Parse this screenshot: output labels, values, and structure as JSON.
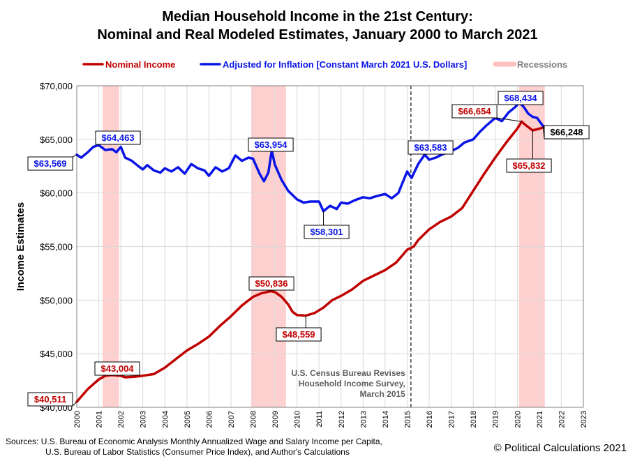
{
  "header": {
    "title_line1": "Median Household Income in the 21st Century:",
    "title_line2": "Nominal and Real Modeled Estimates, January 2000 to March 2021"
  },
  "legend": {
    "items": [
      {
        "label": "Nominal Income",
        "color": "#c00000"
      },
      {
        "label": "Adjusted for Inflation [Constant March 2021 U.S. Dollars]",
        "color": "#0a14e6"
      },
      {
        "label": "Recessions",
        "color": "#ffc0c0",
        "text_color": "#808080"
      }
    ]
  },
  "chart_data": {
    "type": "line",
    "ylabel": "Income Estimates",
    "xlim": [
      2000,
      2023
    ],
    "ylim": [
      40000,
      70000
    ],
    "x_ticks": [
      "2000",
      "2001",
      "2002",
      "2003",
      "2004",
      "2005",
      "2006",
      "2007",
      "2008",
      "2009",
      "2010",
      "2011",
      "2012",
      "2013",
      "2014",
      "2015",
      "2016",
      "2017",
      "2018",
      "2019",
      "2020",
      "2021",
      "2022",
      "2023"
    ],
    "y_ticks": [
      "$40,000",
      "$45,000",
      "$50,000",
      "$55,000",
      "$60,000",
      "$65,000",
      "$70,000"
    ],
    "recessions": [
      [
        2001.17,
        2001.92
      ],
      [
        2007.92,
        2009.5
      ],
      [
        2020.08,
        2021.25
      ]
    ],
    "series": [
      {
        "name": "Nominal Income",
        "color": "#c00000",
        "x": [
          2000.0,
          2000.5,
          2001.0,
          2001.3,
          2001.6,
          2002.0,
          2002.2,
          2002.6,
          2003.0,
          2003.5,
          2004.0,
          2004.5,
          2005.0,
          2005.5,
          2006.0,
          2006.5,
          2007.0,
          2007.5,
          2008.0,
          2008.4,
          2008.8,
          2009.0,
          2009.3,
          2009.6,
          2009.8,
          2010.0,
          2010.4,
          2010.8,
          2011.2,
          2011.6,
          2012.0,
          2012.5,
          2013.0,
          2013.5,
          2014.0,
          2014.5,
          2015.0,
          2015.3,
          2015.5,
          2016.0,
          2016.5,
          2017.0,
          2017.5,
          2018.0,
          2018.5,
          2019.0,
          2019.5,
          2020.0,
          2020.2,
          2020.4,
          2020.7,
          2021.0,
          2021.17
        ],
        "y": [
          40511,
          41700,
          42600,
          42950,
          43004,
          42950,
          42800,
          42850,
          42950,
          43100,
          43700,
          44500,
          45300,
          45900,
          46600,
          47600,
          48500,
          49500,
          50300,
          50650,
          50836,
          50750,
          50300,
          49600,
          48900,
          48600,
          48559,
          48800,
          49300,
          50000,
          50400,
          51000,
          51800,
          52300,
          52800,
          53500,
          54700,
          55000,
          55600,
          56600,
          57300,
          57800,
          58600,
          60200,
          61800,
          63300,
          64700,
          66000,
          66654,
          66300,
          65832,
          66000,
          66100
        ]
      },
      {
        "name": "Adjusted for Inflation [Constant March 2021 U.S. Dollars]",
        "color": "#0a14e6",
        "x": [
          2000.0,
          2000.2,
          2000.5,
          2000.75,
          2001.0,
          2001.3,
          2001.6,
          2001.8,
          2002.0,
          2002.2,
          2002.5,
          2002.8,
          2003.0,
          2003.2,
          2003.5,
          2003.8,
          2004.0,
          2004.3,
          2004.6,
          2004.9,
          2005.2,
          2005.5,
          2005.8,
          2006.0,
          2006.3,
          2006.6,
          2006.9,
          2007.2,
          2007.5,
          2007.8,
          2008.0,
          2008.3,
          2008.5,
          2008.7,
          2008.85,
          2009.0,
          2009.3,
          2009.6,
          2010.0,
          2010.3,
          2010.6,
          2011.0,
          2011.2,
          2011.5,
          2011.8,
          2012.0,
          2012.3,
          2012.6,
          2013.0,
          2013.3,
          2013.6,
          2014.0,
          2014.3,
          2014.6,
          2014.9,
          2015.0,
          2015.2,
          2015.5,
          2015.8,
          2016.0,
          2016.3,
          2016.6,
          2017.0,
          2017.3,
          2017.6,
          2018.0,
          2018.3,
          2018.6,
          2019.0,
          2019.3,
          2019.6,
          2019.9,
          2020.1,
          2020.3,
          2020.5,
          2020.7,
          2020.9,
          2021.17
        ],
        "y": [
          63569,
          63300,
          63800,
          64300,
          64463,
          64000,
          64100,
          63800,
          64300,
          63300,
          63000,
          62500,
          62200,
          62600,
          62100,
          61900,
          62300,
          62000,
          62400,
          61800,
          62700,
          62300,
          62100,
          61600,
          62400,
          62000,
          62300,
          63500,
          63000,
          63300,
          63200,
          61800,
          61100,
          61900,
          63954,
          62600,
          61200,
          60200,
          59400,
          59100,
          59200,
          59200,
          58301,
          58800,
          58500,
          59100,
          59000,
          59300,
          59600,
          59500,
          59700,
          59900,
          59500,
          60000,
          61500,
          62000,
          61400,
          62700,
          63583,
          63100,
          63300,
          63600,
          63900,
          64200,
          64700,
          65000,
          65700,
          66300,
          67000,
          66700,
          67500,
          68000,
          68434,
          68000,
          67400,
          67100,
          67000,
          66248
        ]
      }
    ],
    "annotations": [
      {
        "text": "$40,511",
        "series": "Nominal Income"
      },
      {
        "text": "$43,004",
        "series": "Nominal Income"
      },
      {
        "text": "$50,836",
        "series": "Nominal Income"
      },
      {
        "text": "$48,559",
        "series": "Nominal Income"
      },
      {
        "text": "$66,654",
        "series": "Nominal Income"
      },
      {
        "text": "$65,832",
        "series": "Nominal Income"
      },
      {
        "text": "$63,569",
        "series": "Adjusted for Inflation [Constant March 2021 U.S. Dollars]"
      },
      {
        "text": "$64,463",
        "series": "Adjusted for Inflation [Constant March 2021 U.S. Dollars]"
      },
      {
        "text": "$63,954",
        "series": "Adjusted for Inflation [Constant March 2021 U.S. Dollars]"
      },
      {
        "text": "$58,301",
        "series": "Adjusted for Inflation [Constant March 2021 U.S. Dollars]"
      },
      {
        "text": "$63,583",
        "series": "Adjusted for Inflation [Constant March 2021 U.S. Dollars]"
      },
      {
        "text": "$68,434",
        "series": "Adjusted for Inflation [Constant March 2021 U.S. Dollars]"
      },
      {
        "text": "$66,248",
        "series": "Adjusted for Inflation [Constant March 2021 U.S. Dollars]"
      }
    ],
    "note": {
      "x": 2015.17,
      "lines": [
        "U.S. Census Bureau Revises",
        "Household Income Survey,",
        "March 2015"
      ]
    }
  },
  "footer": {
    "sources_line1": "Sources: U.S. Bureau of Economic Analysis Monthly Annualized Wage and Salary Income per Capita,",
    "sources_line2": "U.S. Bureau of Labor Statistics (Consumer Price Index), and Author's Calculations",
    "copyright": "© Political Calculations 2021"
  }
}
